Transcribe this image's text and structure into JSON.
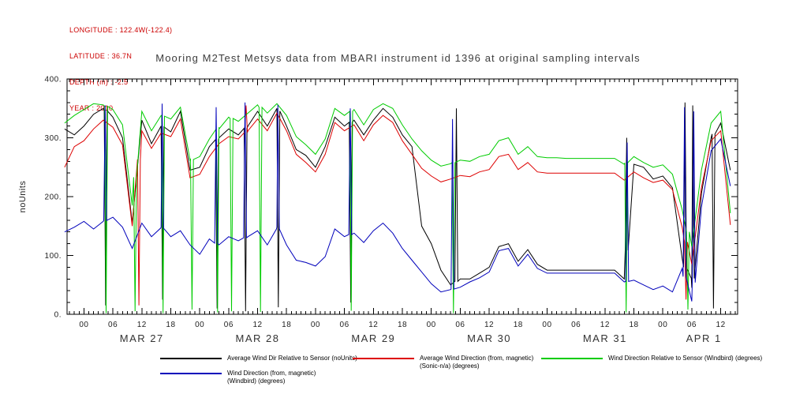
{
  "meta": {
    "longitude": "LONGITUDE : 122.4W(-122.4)",
    "latitude": "LATITUDE : 36.7N",
    "depth": "DEPTH (m) : -2.5",
    "year": "YEAR : 2010"
  },
  "title": "Mooring M2Test Metsys data from MBARI instrument id 1396 at original sampling intervals",
  "legend": [
    {
      "label": "Average Wind Dir Relative to Sensor (noUnits)",
      "color": "#000000"
    },
    {
      "label": "Average Wind Direction (from, magnetic) (Sonic-n/a) (degrees)",
      "color": "#dd0000"
    },
    {
      "label": "Wind Direction Relative to Sensor (Windbird) (degrees)",
      "color": "#00cc00"
    },
    {
      "label": "Wind Direction (from, magnetic) (Windbird) (degrees)",
      "color": "#0000bb"
    }
  ],
  "chart_data": {
    "type": "line",
    "title": "Mooring M2Test Metsys data from MBARI instrument id 1396 at original sampling intervals",
    "xlabel": "",
    "ylabel": "noUnits",
    "ylim": [
      0,
      400
    ],
    "xlim": [
      -3.5,
      135.5
    ],
    "x_unit": "hours since 2010-03-27 00:00",
    "grid": false,
    "axis_color": "#000000",
    "legend_position": "bottom",
    "y_ticks": [
      {
        "v": 0,
        "label": "0."
      },
      {
        "v": 100,
        "label": "100."
      },
      {
        "v": 200,
        "label": "200."
      },
      {
        "v": 300,
        "label": "300."
      },
      {
        "v": 400,
        "label": "400."
      }
    ],
    "x_ticks": [
      {
        "t": 0,
        "label": "00"
      },
      {
        "t": 6,
        "label": "06"
      },
      {
        "t": 12,
        "label": "12"
      },
      {
        "t": 18,
        "label": "18"
      },
      {
        "t": 24,
        "label": "00"
      },
      {
        "t": 30,
        "label": "06"
      },
      {
        "t": 36,
        "label": "12"
      },
      {
        "t": 42,
        "label": "18"
      },
      {
        "t": 48,
        "label": "00"
      },
      {
        "t": 54,
        "label": "06"
      },
      {
        "t": 60,
        "label": "12"
      },
      {
        "t": 66,
        "label": "18"
      },
      {
        "t": 72,
        "label": "00"
      },
      {
        "t": 78,
        "label": "06"
      },
      {
        "t": 84,
        "label": "12"
      },
      {
        "t": 90,
        "label": "18"
      },
      {
        "t": 96,
        "label": "00"
      },
      {
        "t": 102,
        "label": "06"
      },
      {
        "t": 108,
        "label": "12"
      },
      {
        "t": 114,
        "label": "18"
      },
      {
        "t": 120,
        "label": "00"
      },
      {
        "t": 126,
        "label": "06"
      },
      {
        "t": 132,
        "label": "12"
      }
    ],
    "day_labels": [
      {
        "t": 12,
        "label": "MAR 27"
      },
      {
        "t": 36,
        "label": "MAR 28"
      },
      {
        "t": 60,
        "label": "MAR 29"
      },
      {
        "t": 84,
        "label": "MAR 30"
      },
      {
        "t": 108,
        "label": "MAR 31"
      },
      {
        "t": 128.5,
        "label": "APR 1"
      }
    ],
    "x": [
      -4,
      -2,
      0,
      2,
      4,
      6,
      8,
      10,
      12,
      14,
      16,
      18,
      20,
      22,
      24,
      26,
      28,
      30,
      32,
      34,
      36,
      38,
      40,
      42,
      44,
      46,
      48,
      50,
      52,
      54,
      56,
      58,
      60,
      62,
      64,
      66,
      68,
      70,
      72,
      74,
      76,
      78,
      80,
      82,
      84,
      86,
      88,
      90,
      92,
      94,
      96,
      98,
      100,
      102,
      104,
      106,
      108,
      110,
      112,
      114,
      116,
      118,
      120,
      122,
      124,
      126,
      128,
      130,
      132,
      134
    ],
    "series": [
      {
        "name": "Average Wind Dir Relative to Sensor (noUnits)",
        "color": "#000000",
        "y": [
          315,
          305,
          320,
          340,
          350,
          335,
          300,
          155,
          330,
          290,
          320,
          310,
          345,
          245,
          250,
          285,
          300,
          315,
          305,
          320,
          345,
          320,
          350,
          320,
          280,
          270,
          250,
          285,
          335,
          320,
          330,
          305,
          330,
          350,
          335,
          305,
          285,
          150,
          120,
          75,
          50,
          60,
          60,
          70,
          80,
          115,
          120,
          90,
          110,
          85,
          75,
          75,
          75,
          75,
          75,
          75,
          75,
          75,
          60,
          255,
          250,
          230,
          235,
          215,
          95,
          45,
          205,
          300,
          325,
          245
        ],
        "spikes": [
          [
            4.5,
            15
          ],
          [
            16.3,
            25
          ],
          [
            27.6,
            10
          ],
          [
            33.5,
            5
          ],
          [
            40.3,
            12
          ],
          [
            55.3,
            20
          ],
          [
            77.2,
            350
          ],
          [
            112.5,
            300
          ],
          [
            124.6,
            360
          ],
          [
            126.2,
            355
          ],
          [
            130.5,
            10
          ]
        ]
      },
      {
        "name": "Average Wind Direction (from, magnetic) (Sonic-n/a) (degrees)",
        "color": "#dd0000",
        "y": [
          250,
          285,
          295,
          315,
          330,
          318,
          288,
          150,
          312,
          282,
          308,
          302,
          332,
          232,
          238,
          268,
          290,
          302,
          298,
          312,
          332,
          312,
          342,
          312,
          272,
          258,
          242,
          272,
          326,
          312,
          322,
          295,
          322,
          338,
          326,
          295,
          272,
          248,
          235,
          225,
          230,
          236,
          234,
          242,
          246,
          268,
          272,
          246,
          258,
          242,
          240,
          240,
          240,
          240,
          240,
          240,
          240,
          240,
          228,
          242,
          232,
          224,
          228,
          212,
          148,
          85,
          215,
          295,
          312,
          152
        ],
        "spikes": [
          [
            11.4,
            15
          ],
          [
            33.6,
            355
          ],
          [
            124.8,
            25
          ]
        ]
      },
      {
        "name": "Wind Direction Relative to Sensor (Windbird) (degrees)",
        "color": "#00cc00",
        "y": [
          325,
          338,
          348,
          358,
          356,
          348,
          322,
          185,
          345,
          312,
          338,
          332,
          352,
          262,
          268,
          298,
          318,
          335,
          328,
          342,
          356,
          342,
          358,
          338,
          302,
          288,
          272,
          298,
          350,
          338,
          348,
          322,
          348,
          358,
          350,
          322,
          298,
          278,
          262,
          252,
          256,
          262,
          260,
          268,
          272,
          295,
          300,
          272,
          285,
          268,
          266,
          266,
          265,
          265,
          265,
          265,
          265,
          265,
          255,
          268,
          258,
          250,
          254,
          238,
          178,
          115,
          245,
          325,
          345,
          172
        ],
        "spikes": [
          [
            4.6,
            2
          ],
          [
            10.6,
            5
          ],
          [
            16.4,
            2
          ],
          [
            22.4,
            8
          ],
          [
            27.7,
            3
          ],
          [
            30.6,
            5
          ],
          [
            36.6,
            4
          ],
          [
            55.4,
            6
          ],
          [
            76.6,
            2
          ],
          [
            112.4,
            3
          ],
          [
            125.2,
            8
          ]
        ]
      },
      {
        "name": "Wind Direction (from, magnetic) (Windbird) (degrees)",
        "color": "#0000bb",
        "y": [
          140,
          148,
          158,
          145,
          158,
          165,
          148,
          112,
          155,
          132,
          148,
          132,
          142,
          118,
          102,
          128,
          118,
          132,
          125,
          132,
          142,
          118,
          148,
          118,
          92,
          88,
          82,
          98,
          145,
          132,
          138,
          122,
          142,
          155,
          138,
          112,
          92,
          72,
          52,
          38,
          42,
          46,
          55,
          62,
          72,
          108,
          112,
          82,
          102,
          78,
          70,
          70,
          70,
          70,
          70,
          70,
          70,
          70,
          55,
          58,
          50,
          42,
          48,
          38,
          78,
          22,
          182,
          278,
          298,
          218
        ],
        "spikes": [
          [
            4.4,
            355
          ],
          [
            16.2,
            358
          ],
          [
            27.4,
            352
          ],
          [
            33.4,
            360
          ],
          [
            40.2,
            356
          ],
          [
            55.2,
            350
          ],
          [
            76.4,
            332
          ],
          [
            112.6,
            292
          ],
          [
            124.5,
            352
          ],
          [
            126.4,
            345
          ]
        ]
      }
    ]
  }
}
